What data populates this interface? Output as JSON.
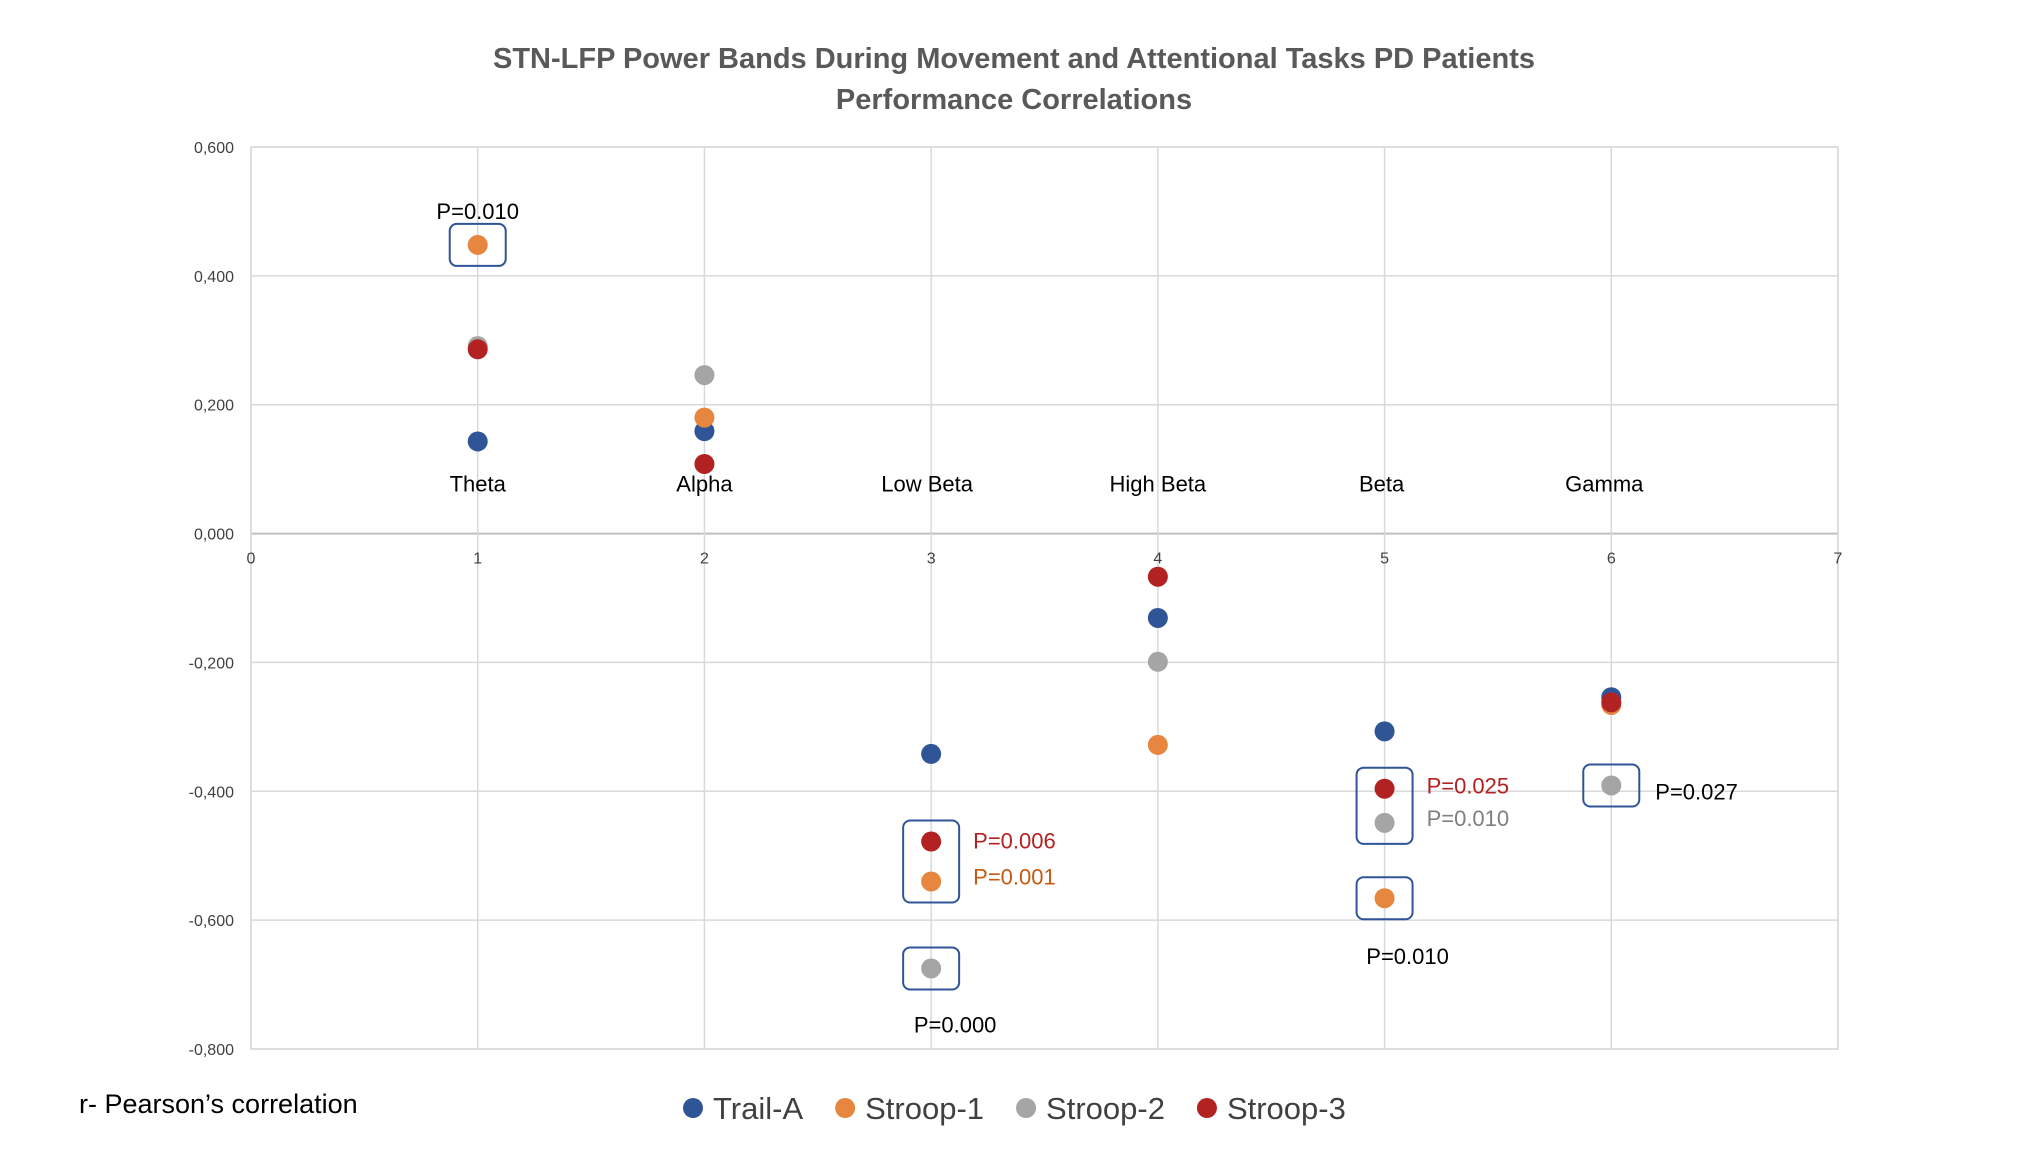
{
  "chart_data": {
    "type": "scatter",
    "title": "STN-LFP Power Bands During Movement and Attentional Tasks PD Patients",
    "subtitle": "Performance Correlations",
    "xlim": [
      0,
      7
    ],
    "ylim": [
      -0.8,
      0.6
    ],
    "x_ticks": [
      "0",
      "1",
      "2",
      "3",
      "4",
      "5",
      "6",
      "7"
    ],
    "y_ticks": [
      "0,600",
      "0,400",
      "0,200",
      "0,000",
      "-0,200",
      "-0,400",
      "-0,600",
      "-0,800"
    ],
    "grid": true,
    "legend_position": "bottom",
    "band_labels": [
      {
        "x": 1,
        "label": "Theta"
      },
      {
        "x": 2,
        "label": "Alpha"
      },
      {
        "x": 3,
        "label": "Low Beta"
      },
      {
        "x": 4,
        "label": "High Beta"
      },
      {
        "x": 5,
        "label": "Beta"
      },
      {
        "x": 6,
        "label": "Gamma"
      }
    ],
    "series": [
      {
        "name": "Trail-A",
        "color": "#2F5597",
        "x": [
          1,
          2,
          3,
          4,
          5,
          6
        ],
        "values": [
          0.143,
          0.159,
          -0.342,
          -0.131,
          -0.307,
          -0.254
        ]
      },
      {
        "name": "Stroop-1",
        "color": "#E7873F",
        "x": [
          1,
          2,
          3,
          4,
          5,
          6
        ],
        "values": [
          0.448,
          0.18,
          -0.54,
          -0.328,
          -0.566,
          -0.266
        ]
      },
      {
        "name": "Stroop-2",
        "color": "#A5A5A5",
        "x": [
          1,
          2,
          3,
          4,
          5,
          6
        ],
        "values": [
          0.291,
          0.246,
          -0.675,
          -0.199,
          -0.449,
          -0.391
        ]
      },
      {
        "name": "Stroop-3",
        "color": "#B22222",
        "x": [
          1,
          2,
          3,
          4,
          5,
          6
        ],
        "values": [
          0.286,
          0.108,
          -0.478,
          -0.067,
          -0.396,
          -0.262
        ]
      }
    ],
    "annotations": [
      {
        "text": "P=0.010",
        "x": 1,
        "y": 0.448,
        "color": "#000000"
      },
      {
        "text": "P=0.006",
        "x": 3,
        "y": -0.478,
        "color": "#B22222"
      },
      {
        "text": "P=0.001",
        "x": 3,
        "y": -0.54,
        "color": "#C55A11"
      },
      {
        "text": "P=0.000",
        "x": 3,
        "y": -0.675,
        "color": "#000000"
      },
      {
        "text": "P=0.025",
        "x": 5,
        "y": -0.396,
        "color": "#B22222"
      },
      {
        "text": "P=0.010",
        "x": 5,
        "y": -0.449,
        "color": "#7F7F7F"
      },
      {
        "text": "P=0.010",
        "x": 5,
        "y": -0.566,
        "color": "#000000"
      },
      {
        "text": "P=0.027",
        "x": 6,
        "y": -0.391,
        "color": "#000000"
      }
    ],
    "footnote": "r- Pearson’s correlation"
  }
}
